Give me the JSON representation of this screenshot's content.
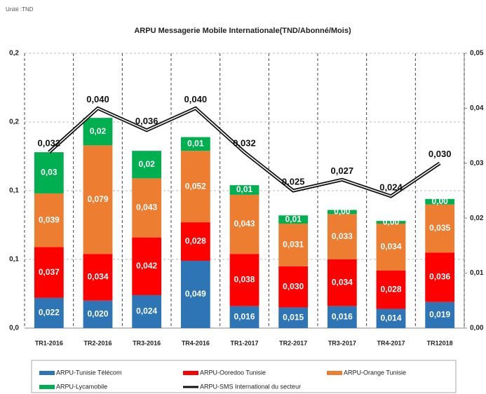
{
  "chart_data": {
    "type": "stacked-bar-line",
    "unit": "Unité :TND",
    "title": "ARPU Messagerie Mobile Internationale(TND/Abonné/Mois)",
    "categories": [
      "TR1-2016",
      "TR2-2016",
      "TR3-2016",
      "TR4-2016",
      "TR1-2017",
      "TR2-2017",
      "TR3-2017",
      "TR4-2017",
      "TR12018"
    ],
    "series": [
      {
        "name": "ARPU-Tunisie Télécom",
        "color": "#2e75b6",
        "values": [
          0.022,
          0.02,
          0.024,
          0.049,
          0.016,
          0.015,
          0.016,
          0.014,
          0.019
        ],
        "value_labels": [
          "0,022",
          "0,020",
          "0,024",
          "0,049",
          "0,016",
          "0,015",
          "0,016",
          "0,014",
          "0,019"
        ]
      },
      {
        "name": "ARPU-Ooredoo Tunisie",
        "color": "#ff0000",
        "values": [
          0.037,
          0.034,
          0.042,
          0.028,
          0.038,
          0.03,
          0.034,
          0.028,
          0.036
        ],
        "value_labels": [
          "0,037",
          "0,034",
          "0,042",
          "0,028",
          "0,038",
          "0,030",
          "0,034",
          "0,028",
          "0,036"
        ]
      },
      {
        "name": "ARPU-Orange Tunisie",
        "color": "#ed7d31",
        "values": [
          0.039,
          0.079,
          0.043,
          0.052,
          0.043,
          0.031,
          0.033,
          0.034,
          0.035
        ],
        "value_labels": [
          "0,039",
          "0,079",
          "0,043",
          "0,052",
          "0,043",
          "0,031",
          "0,033",
          "0,034",
          "0,035"
        ]
      },
      {
        "name": "ARPU-Lycamobile",
        "color": "#00b050",
        "values": [
          0.03,
          0.02,
          0.02,
          0.01,
          0.007,
          0.006,
          0.003,
          0.002,
          0.004
        ],
        "value_labels": [
          "0,03",
          "0,02",
          "0,02",
          "0,01",
          "0,01",
          "0,01",
          "0,00",
          "0,00",
          "0,00"
        ]
      },
      {
        "name": "ARPU-SMS International  du secteur",
        "color": "#111111",
        "axis": "y2",
        "values": [
          0.032,
          0.04,
          0.036,
          0.04,
          0.032,
          0.025,
          0.027,
          0.024,
          0.03
        ],
        "value_labels": [
          "0,032",
          "0,040",
          "0,036",
          "0,040",
          "0,032",
          "0,025",
          "0,027",
          "0,024",
          "0,030"
        ]
      }
    ],
    "ylim": [
      0,
      0.2
    ],
    "yticks": [
      {
        "value": 0,
        "label": "0,0"
      },
      {
        "value": 0.05,
        "label": "0,1"
      },
      {
        "value": 0.1,
        "label": "0,1"
      },
      {
        "value": 0.15,
        "label": "0,2"
      },
      {
        "value": 0.2,
        "label": "0,2"
      }
    ],
    "y2lim": [
      0,
      0.05
    ],
    "y2ticks": [
      {
        "value": 0,
        "label": "0,00"
      },
      {
        "value": 0.01,
        "label": "0,01"
      },
      {
        "value": 0.02,
        "label": "0,02"
      },
      {
        "value": 0.03,
        "label": "0,03"
      },
      {
        "value": 0.04,
        "label": "0,04"
      },
      {
        "value": 0.05,
        "label": "0,05"
      }
    ],
    "grid": true
  }
}
